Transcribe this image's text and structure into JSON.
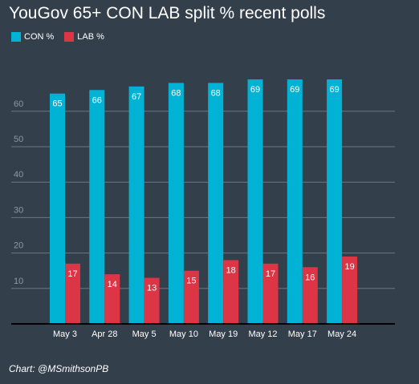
{
  "chart_data": {
    "type": "bar",
    "title": "YouGov 65+ CON LAB split % recent polls",
    "categories": [
      "May 3",
      "Apr 28",
      "May 5",
      "May 10",
      "May 19",
      "May 12",
      "May 17",
      "May 24"
    ],
    "series": [
      {
        "name": "CON %",
        "color": "#00b3d4",
        "values": [
          65,
          66,
          67,
          68,
          68,
          69,
          69,
          69
        ]
      },
      {
        "name": "LAB %",
        "color": "#dc3545",
        "values": [
          17,
          14,
          13,
          15,
          18,
          17,
          16,
          19
        ]
      }
    ],
    "yticks": [
      10,
      20,
      30,
      40,
      50,
      60
    ],
    "ylim": [
      0,
      70
    ],
    "grid": true,
    "legend": "top-left",
    "xlabel": "",
    "ylabel": ""
  },
  "credit": "Chart: @MSmithsonPB"
}
